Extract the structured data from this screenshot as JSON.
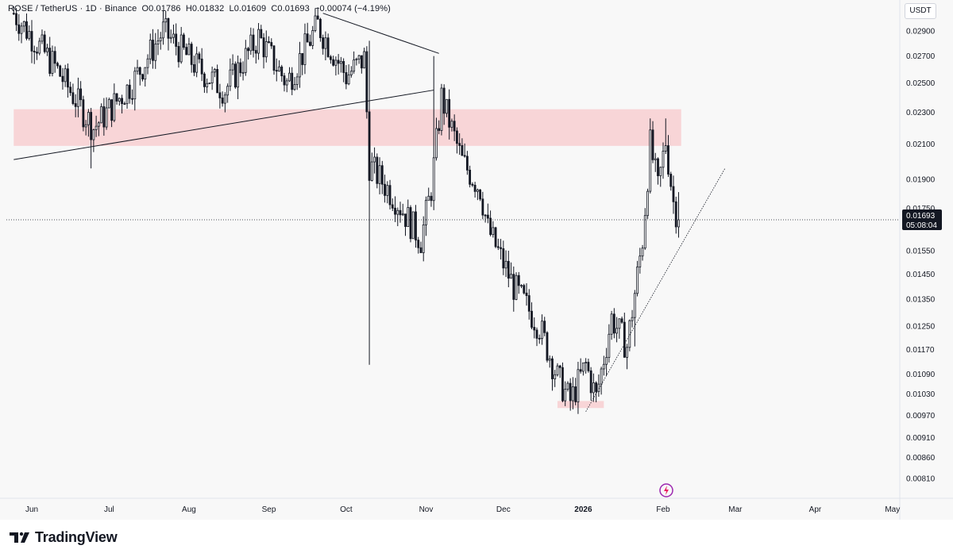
{
  "legend": {
    "symbol": "ROSE / TetherUS · 1D · Binance",
    "open": "O0.01786",
    "high": "H0.01832",
    "low": "L0.01609",
    "close": "C0.01693",
    "change": "−0.00074 (−4.19%)"
  },
  "currency": "USDT",
  "last_price": {
    "value": "0.01693",
    "countdown": "05:08:04"
  },
  "brand": {
    "name": "TradingView"
  },
  "chart_data": {
    "type": "candlestick",
    "symbol": "ROSE / TetherUS",
    "interval": "1D",
    "exchange": "Binance",
    "y_ticks": [
      "0.02900",
      "0.02700",
      "0.02500",
      "0.02300",
      "0.02100",
      "0.01900",
      "0.01750",
      "0.01550",
      "0.01450",
      "0.01350",
      "0.01250",
      "0.01170",
      "0.01090",
      "0.01030",
      "0.00970",
      "0.00910",
      "0.00860",
      "0.00810"
    ],
    "x_ticks": [
      "Jun",
      "Jul",
      "Aug",
      "Sep",
      "Oct",
      "Nov",
      "Dec",
      "2026",
      "Feb",
      "Mar",
      "Apr",
      "May"
    ],
    "ylim": [
      0.0078,
      0.0306
    ],
    "log_scale": true,
    "grid": false,
    "last_close": 0.01693,
    "colors": {
      "up": "#ffffff",
      "down": "#131722",
      "wick": "#131722",
      "zone": "#f8c9cc",
      "price_line": "#131722"
    },
    "zones": [
      {
        "from_date": "2025-05-25",
        "to_date": "2026-02-08",
        "low": 0.0209,
        "high": 0.0232
      },
      {
        "from_date": "2025-12-22",
        "to_date": "2026-01-09",
        "low": 0.0099,
        "high": 0.0101
      }
    ],
    "trendlines": [
      {
        "start": [
          "2025-05-25",
          0.0201
        ],
        "end": [
          "2025-11-04",
          0.0245
        ],
        "style": "solid"
      },
      {
        "start": [
          "2025-09-22",
          0.0305
        ],
        "end": [
          "2025-11-06",
          0.0272
        ],
        "style": "solid"
      },
      {
        "start": [
          "2026-01-02",
          0.0098
        ],
        "end": [
          "2026-02-25",
          0.0196
        ],
        "style": "dotted"
      }
    ],
    "candle_keypoints": [
      {
        "date": "2025-05-25",
        "close": 0.0305
      },
      {
        "date": "2025-06-10",
        "close": 0.0262
      },
      {
        "date": "2025-06-25",
        "close": 0.022
      },
      {
        "date": "2025-07-10",
        "close": 0.025
      },
      {
        "date": "2025-07-22",
        "close": 0.029
      },
      {
        "date": "2025-08-05",
        "close": 0.026
      },
      {
        "date": "2025-08-15",
        "close": 0.0245
      },
      {
        "date": "2025-08-28",
        "close": 0.0285
      },
      {
        "date": "2025-09-08",
        "close": 0.025
      },
      {
        "date": "2025-09-20",
        "close": 0.0295
      },
      {
        "date": "2025-10-01",
        "close": 0.0255
      },
      {
        "date": "2025-10-08",
        "close": 0.0268
      },
      {
        "date": "2025-10-10",
        "close": 0.0198
      },
      {
        "date": "2025-10-20",
        "close": 0.018
      },
      {
        "date": "2025-10-30",
        "close": 0.016
      },
      {
        "date": "2025-11-03",
        "close": 0.0185
      },
      {
        "date": "2025-11-07",
        "close": 0.024
      },
      {
        "date": "2025-11-15",
        "close": 0.02
      },
      {
        "date": "2025-11-22",
        "close": 0.0185
      },
      {
        "date": "2025-11-25",
        "close": 0.0165
      },
      {
        "date": "2025-12-05",
        "close": 0.014
      },
      {
        "date": "2025-12-15",
        "close": 0.0125
      },
      {
        "date": "2025-12-22",
        "close": 0.0108
      },
      {
        "date": "2025-12-27",
        "close": 0.0101
      },
      {
        "date": "2026-01-02",
        "close": 0.0112
      },
      {
        "date": "2026-01-06",
        "close": 0.0102
      },
      {
        "date": "2026-01-12",
        "close": 0.0128
      },
      {
        "date": "2026-01-18",
        "close": 0.0118
      },
      {
        "date": "2026-01-24",
        "close": 0.016
      },
      {
        "date": "2026-01-27",
        "close": 0.021
      },
      {
        "date": "2026-01-30",
        "close": 0.0185
      },
      {
        "date": "2026-02-02",
        "close": 0.0212
      },
      {
        "date": "2026-02-05",
        "close": 0.0178
      },
      {
        "date": "2026-02-07",
        "close": 0.01693
      }
    ]
  }
}
